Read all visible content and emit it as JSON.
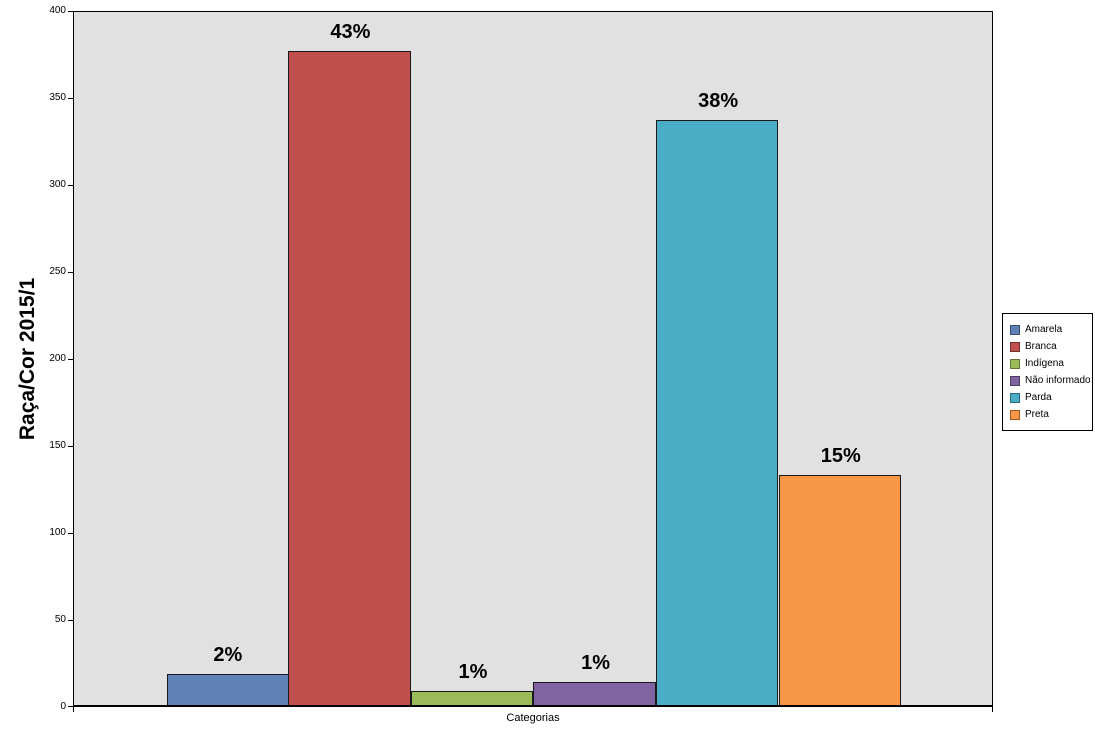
{
  "chart_data": {
    "type": "bar",
    "title": "",
    "xlabel": "Categorias",
    "ylabel": "Raça/Cor 2015/1",
    "ylim": [
      0,
      400
    ],
    "yticks": [
      0,
      50,
      100,
      150,
      200,
      250,
      300,
      350,
      400
    ],
    "categories": [
      "Amarela",
      "Branca",
      "Indígena",
      "Não informado",
      "Parda",
      "Preta"
    ],
    "values": [
      18,
      376,
      8,
      13,
      336,
      132
    ],
    "bar_labels": [
      "2%",
      "43%",
      "1%",
      "1%",
      "38%",
      "15%"
    ],
    "colors": [
      "#5F81B5",
      "#C0504D",
      "#9BBB59",
      "#8064A2",
      "#4BACC6",
      "#F79646"
    ],
    "swatch_border_colors": [
      "#344E6C",
      "#74302C",
      "#5E7634",
      "#4D3B62",
      "#2A6B7C",
      "#A1581F"
    ],
    "bar_border_color": "#1a1a1a",
    "plot_background": "#E1E1E1",
    "grid": false,
    "legend_position": "right",
    "legend_entries": [
      "Amarela",
      "Branca",
      "Indígena",
      "Não informado",
      "Parda",
      "Preta"
    ]
  }
}
